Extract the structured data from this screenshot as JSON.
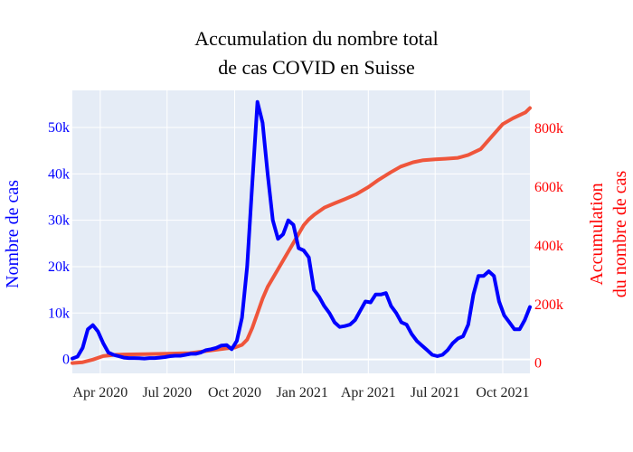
{
  "chart_data": {
    "type": "line",
    "title_line1": "Accumulation du nombre total",
    "title_line2": "de cas COVID en Suisse",
    "y_left": {
      "label": "Nombre de cas",
      "color": "#0000ff",
      "range": [
        -3000,
        58000
      ],
      "ticks": [
        0,
        10000,
        20000,
        30000,
        40000,
        50000
      ],
      "tick_labels": [
        "0",
        "10k",
        "20k",
        "30k",
        "40k",
        "50k"
      ]
    },
    "y_right": {
      "label_line1": "Accumulation",
      "label_line2": "du nombre de cas",
      "color": "#ff0000",
      "range": [
        -35000,
        930000
      ],
      "ticks": [
        0,
        200000,
        400000,
        600000,
        800000
      ],
      "tick_labels": [
        "0",
        "200k",
        "400k",
        "600k",
        "800k"
      ]
    },
    "x_axis": {
      "start": "2020-02-23",
      "end": "2021-11-07",
      "tick_dates": [
        "2020-04-01",
        "2020-07-01",
        "2020-10-01",
        "2021-01-01",
        "2021-04-01",
        "2021-07-01",
        "2021-10-01"
      ],
      "tick_labels": [
        "Apr 2020",
        "Jul 2020",
        "Oct 2020",
        "Jan 2021",
        "Apr 2021",
        "Jul 2021",
        "Oct 2021"
      ]
    },
    "plot_bg": "#e5ecf6",
    "grid": true,
    "series": [
      {
        "axis": "left",
        "color": "#0000ff",
        "x": [
          "2020-02-23",
          "2020-03-01",
          "2020-03-08",
          "2020-03-15",
          "2020-03-22",
          "2020-03-29",
          "2020-04-05",
          "2020-04-12",
          "2020-04-19",
          "2020-04-26",
          "2020-05-03",
          "2020-05-10",
          "2020-05-17",
          "2020-05-24",
          "2020-05-31",
          "2020-06-07",
          "2020-06-14",
          "2020-06-21",
          "2020-06-28",
          "2020-07-05",
          "2020-07-12",
          "2020-07-19",
          "2020-07-26",
          "2020-08-02",
          "2020-08-09",
          "2020-08-16",
          "2020-08-23",
          "2020-08-30",
          "2020-09-06",
          "2020-09-13",
          "2020-09-20",
          "2020-09-27",
          "2020-10-04",
          "2020-10-11",
          "2020-10-18",
          "2020-10-25",
          "2020-11-01",
          "2020-11-08",
          "2020-11-15",
          "2020-11-22",
          "2020-11-29",
          "2020-12-06",
          "2020-12-13",
          "2020-12-20",
          "2020-12-27",
          "2021-01-03",
          "2021-01-10",
          "2021-01-17",
          "2021-01-24",
          "2021-01-31",
          "2021-02-07",
          "2021-02-14",
          "2021-02-21",
          "2021-02-28",
          "2021-03-07",
          "2021-03-14",
          "2021-03-21",
          "2021-03-28",
          "2021-04-04",
          "2021-04-11",
          "2021-04-18",
          "2021-04-25",
          "2021-05-02",
          "2021-05-09",
          "2021-05-16",
          "2021-05-23",
          "2021-05-30",
          "2021-06-06",
          "2021-06-13",
          "2021-06-20",
          "2021-06-27",
          "2021-07-04",
          "2021-07-11",
          "2021-07-18",
          "2021-07-25",
          "2021-08-01",
          "2021-08-08",
          "2021-08-15",
          "2021-08-22",
          "2021-08-29",
          "2021-09-05",
          "2021-09-12",
          "2021-09-19",
          "2021-09-26",
          "2021-10-03",
          "2021-10-10",
          "2021-10-17",
          "2021-10-24",
          "2021-10-31",
          "2021-11-07"
        ],
        "values": [
          200,
          600,
          2500,
          6500,
          7400,
          6000,
          3500,
          1500,
          1000,
          700,
          400,
          300,
          300,
          250,
          200,
          300,
          300,
          400,
          500,
          700,
          800,
          800,
          1000,
          1200,
          1200,
          1500,
          2000,
          2200,
          2500,
          3000,
          3100,
          2200,
          4000,
          9000,
          20000,
          38000,
          55500,
          51000,
          40000,
          30000,
          26000,
          27000,
          30000,
          29000,
          24000,
          23500,
          22000,
          15000,
          13500,
          11500,
          10000,
          8000,
          7000,
          7200,
          7500,
          8500,
          10500,
          12500,
          12300,
          14000,
          14000,
          14300,
          11500,
          10000,
          8000,
          7500,
          5500,
          4000,
          3000,
          2000,
          1000,
          700,
          1000,
          2000,
          3500,
          4500,
          5000,
          7500,
          14000,
          18000,
          18000,
          19000,
          18000,
          12500,
          9500,
          8000,
          6500,
          6500,
          8500,
          11300
        ]
      },
      {
        "axis": "right",
        "color": "#ef553b",
        "x": [
          "2020-02-23",
          "2020-03-08",
          "2020-03-22",
          "2020-04-05",
          "2020-04-19",
          "2020-05-03",
          "2020-06-01",
          "2020-07-01",
          "2020-08-01",
          "2020-09-01",
          "2020-09-20",
          "2020-10-01",
          "2020-10-11",
          "2020-10-18",
          "2020-10-25",
          "2020-11-01",
          "2020-11-08",
          "2020-11-15",
          "2020-11-22",
          "2020-11-29",
          "2020-12-06",
          "2020-12-13",
          "2020-12-20",
          "2020-12-27",
          "2021-01-03",
          "2021-01-10",
          "2021-01-17",
          "2021-01-31",
          "2021-02-14",
          "2021-03-01",
          "2021-03-15",
          "2021-04-01",
          "2021-04-15",
          "2021-05-01",
          "2021-05-15",
          "2021-06-01",
          "2021-06-15",
          "2021-07-01",
          "2021-07-15",
          "2021-08-01",
          "2021-08-15",
          "2021-09-01",
          "2021-09-15",
          "2021-10-01",
          "2021-10-15",
          "2021-11-01",
          "2021-11-07"
        ],
        "values": [
          200,
          3000,
          12000,
          24000,
          28000,
          29500,
          30500,
          32000,
          34000,
          44000,
          50000,
          53000,
          62000,
          80000,
          120000,
          170000,
          220000,
          260000,
          290000,
          320000,
          350000,
          380000,
          410000,
          440000,
          470000,
          490000,
          505000,
          530000,
          545000,
          560000,
          575000,
          600000,
          625000,
          650000,
          670000,
          685000,
          692000,
          695000,
          697000,
          700000,
          710000,
          730000,
          770000,
          815000,
          835000,
          855000,
          870000
        ]
      }
    ]
  }
}
